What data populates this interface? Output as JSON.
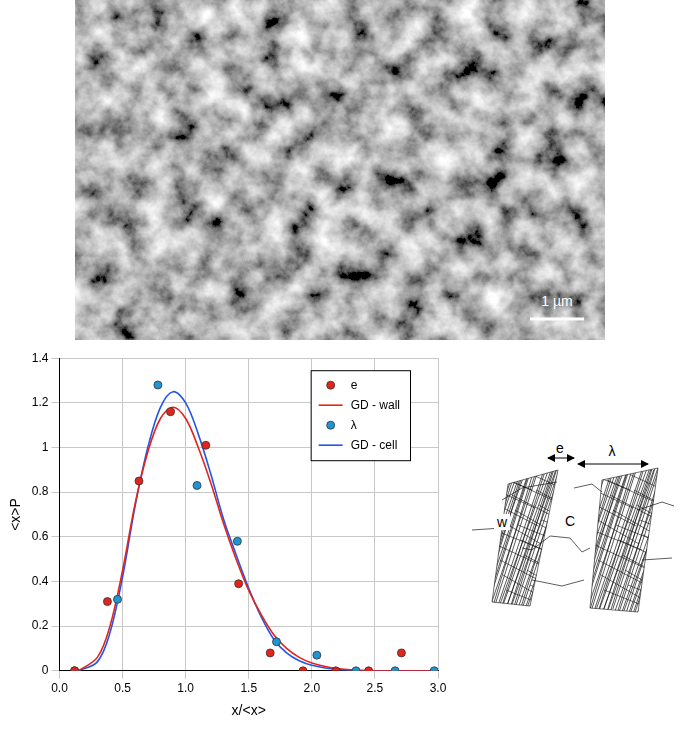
{
  "micrograph": {
    "scale_bar": "1 µm"
  },
  "chart_data": {
    "type": "scatter",
    "x_label": "x/<x>",
    "y_label": "<x>P",
    "xlim": [
      0,
      3
    ],
    "xticks": [
      {
        "value": 0,
        "label": "0.0"
      },
      0.5,
      {
        "value": 1,
        "label": "1.0"
      },
      1.5,
      {
        "value": 2,
        "label": "2.0"
      },
      2.5,
      {
        "value": 3,
        "label": "3.0"
      }
    ],
    "ylim": [
      0,
      1.4
    ],
    "yticks": [
      0,
      0.2,
      0.4,
      0.6,
      0.8,
      1,
      1.2,
      1.4
    ],
    "grid": true,
    "legend": "top-right",
    "series": [
      {
        "name": "e",
        "type": "scatter",
        "marker": "circle",
        "color": "#e3241b",
        "x": [
          0.12,
          0.38,
          0.63,
          0.88,
          1.16,
          1.42,
          1.67,
          1.93,
          2.19,
          2.45,
          2.71
        ],
        "values": [
          0,
          0.31,
          0.85,
          1.16,
          1.01,
          0.39,
          0.08,
          0,
          0,
          0,
          0.08
        ]
      },
      {
        "name": "GD - wall",
        "type": "line",
        "line_style": "solid",
        "color": "#e3241b",
        "x": [
          0.15,
          0.3,
          0.4,
          0.5,
          0.6,
          0.7,
          0.8,
          0.9,
          1.0,
          1.1,
          1.2,
          1.3,
          1.4,
          1.5,
          1.6,
          1.7,
          1.8,
          1.9,
          2.0,
          2.2,
          2.5,
          3.0
        ],
        "values": [
          0,
          0.06,
          0.2,
          0.45,
          0.75,
          0.98,
          1.13,
          1.18,
          1.13,
          1.0,
          0.84,
          0.66,
          0.5,
          0.36,
          0.25,
          0.16,
          0.1,
          0.06,
          0.035,
          0.01,
          0,
          0
        ]
      },
      {
        "name": "λ",
        "type": "scatter",
        "marker": "circle",
        "color": "#1f96d4",
        "x": [
          0.12,
          0.46,
          0.78,
          1.09,
          1.41,
          1.72,
          2.04,
          2.35,
          2.66,
          2.97
        ],
        "values": [
          0,
          0.32,
          1.28,
          0.83,
          0.58,
          0.13,
          0.07,
          0,
          0,
          0
        ]
      },
      {
        "name": "GD - cell",
        "type": "line",
        "line_style": "solid",
        "color": "#2455e8",
        "x": [
          0.15,
          0.3,
          0.4,
          0.5,
          0.6,
          0.7,
          0.8,
          0.9,
          1.0,
          1.1,
          1.2,
          1.3,
          1.4,
          1.5,
          1.6,
          1.7,
          1.8,
          1.9,
          2.0,
          2.2,
          2.5,
          3.0
        ],
        "values": [
          0,
          0.04,
          0.17,
          0.42,
          0.74,
          1.0,
          1.18,
          1.25,
          1.2,
          1.06,
          0.88,
          0.68,
          0.52,
          0.37,
          0.24,
          0.14,
          0.08,
          0.045,
          0.025,
          0.006,
          0,
          0
        ]
      }
    ]
  },
  "schematic": {
    "labels": [
      "e",
      "λ",
      "w",
      "C"
    ]
  }
}
